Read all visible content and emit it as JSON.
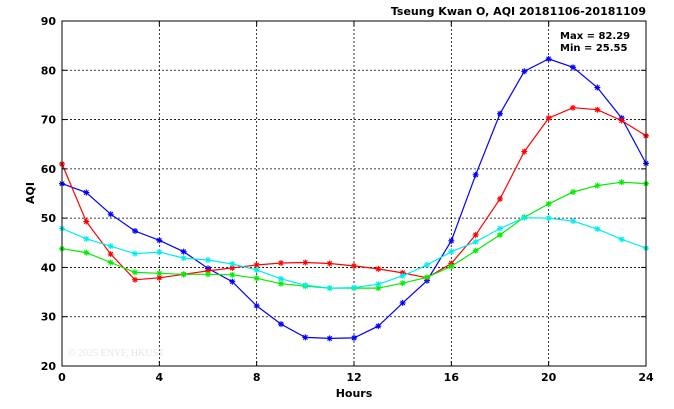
{
  "chart_data": {
    "type": "line",
    "title": "Tseung Kwan O, AQI 20181106-20181109",
    "xlabel": "Hours",
    "ylabel": "AQI",
    "xlim": [
      0,
      24
    ],
    "ylim": [
      20,
      90
    ],
    "x_ticks": [
      "0",
      "4",
      "8",
      "12",
      "16",
      "20",
      "24"
    ],
    "y_ticks": [
      "20",
      "30",
      "40",
      "50",
      "60",
      "70",
      "80",
      "90"
    ],
    "grid": true,
    "legend": "none",
    "stats": {
      "max_label": "Max = 82.29",
      "min_label": "Min = 25.55"
    },
    "watermark": "© 2025 ENVF, HKUST",
    "x": [
      0,
      1,
      2,
      3,
      4,
      5,
      6,
      7,
      8,
      9,
      10,
      11,
      12,
      13,
      14,
      15,
      16,
      17,
      18,
      19,
      20,
      21,
      22,
      23,
      24
    ],
    "series": [
      {
        "color": "#0000ff",
        "values": [
          57,
          55.2,
          50.8,
          47.4,
          45.5,
          43.2,
          39.8,
          37.1,
          32.2,
          28.5,
          25.8,
          25.6,
          25.7,
          28.1,
          32.8,
          37.3,
          45.4,
          58.8,
          71.2,
          79.8,
          82.3,
          80.6,
          76.5,
          70.3,
          61.1
        ]
      },
      {
        "color": "#ff0000",
        "values": [
          61,
          49.3,
          42.7,
          37.5,
          37.9,
          38.6,
          39.3,
          39.9,
          40.5,
          40.9,
          41,
          40.8,
          40.3,
          39.7,
          38.9,
          37.9,
          40.8,
          46.6,
          53.9,
          63.5,
          70.3,
          72.4,
          72,
          69.8,
          66.7
        ]
      },
      {
        "color": "#00ee00",
        "values": [
          43.8,
          43,
          41,
          39,
          38.8,
          38.6,
          38.6,
          38.5,
          37.8,
          36.7,
          36.2,
          35.8,
          35.8,
          35.8,
          36.8,
          38,
          40.2,
          43.4,
          46.6,
          50.2,
          52.9,
          55.3,
          56.6,
          57.3,
          57
        ]
      },
      {
        "color": "#00eeee",
        "values": [
          47.9,
          45.8,
          44.3,
          42.8,
          43.1,
          41.9,
          41.5,
          40.7,
          39.5,
          37.7,
          36.4,
          35.8,
          35.9,
          36.6,
          38.3,
          40.5,
          43.2,
          45.2,
          47.9,
          50.1,
          50,
          49.4,
          47.8,
          45.7,
          43.9
        ]
      }
    ]
  }
}
